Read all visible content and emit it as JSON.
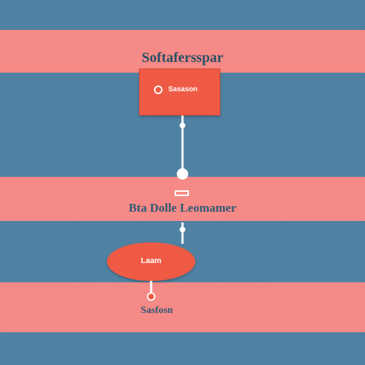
{
  "diagram": {
    "top_label": "Softafersspar",
    "process_box_text": "Sasason",
    "mid_label": "Bta Dolle Leomamer",
    "ellipse_text": "Laam",
    "bottom_label": "Sasfosn"
  },
  "colors": {
    "background": "#4d81a2",
    "band": "#f58a86",
    "node_fill": "#ef5a45",
    "connector": "#ffffff",
    "text": "#2a4f66"
  }
}
